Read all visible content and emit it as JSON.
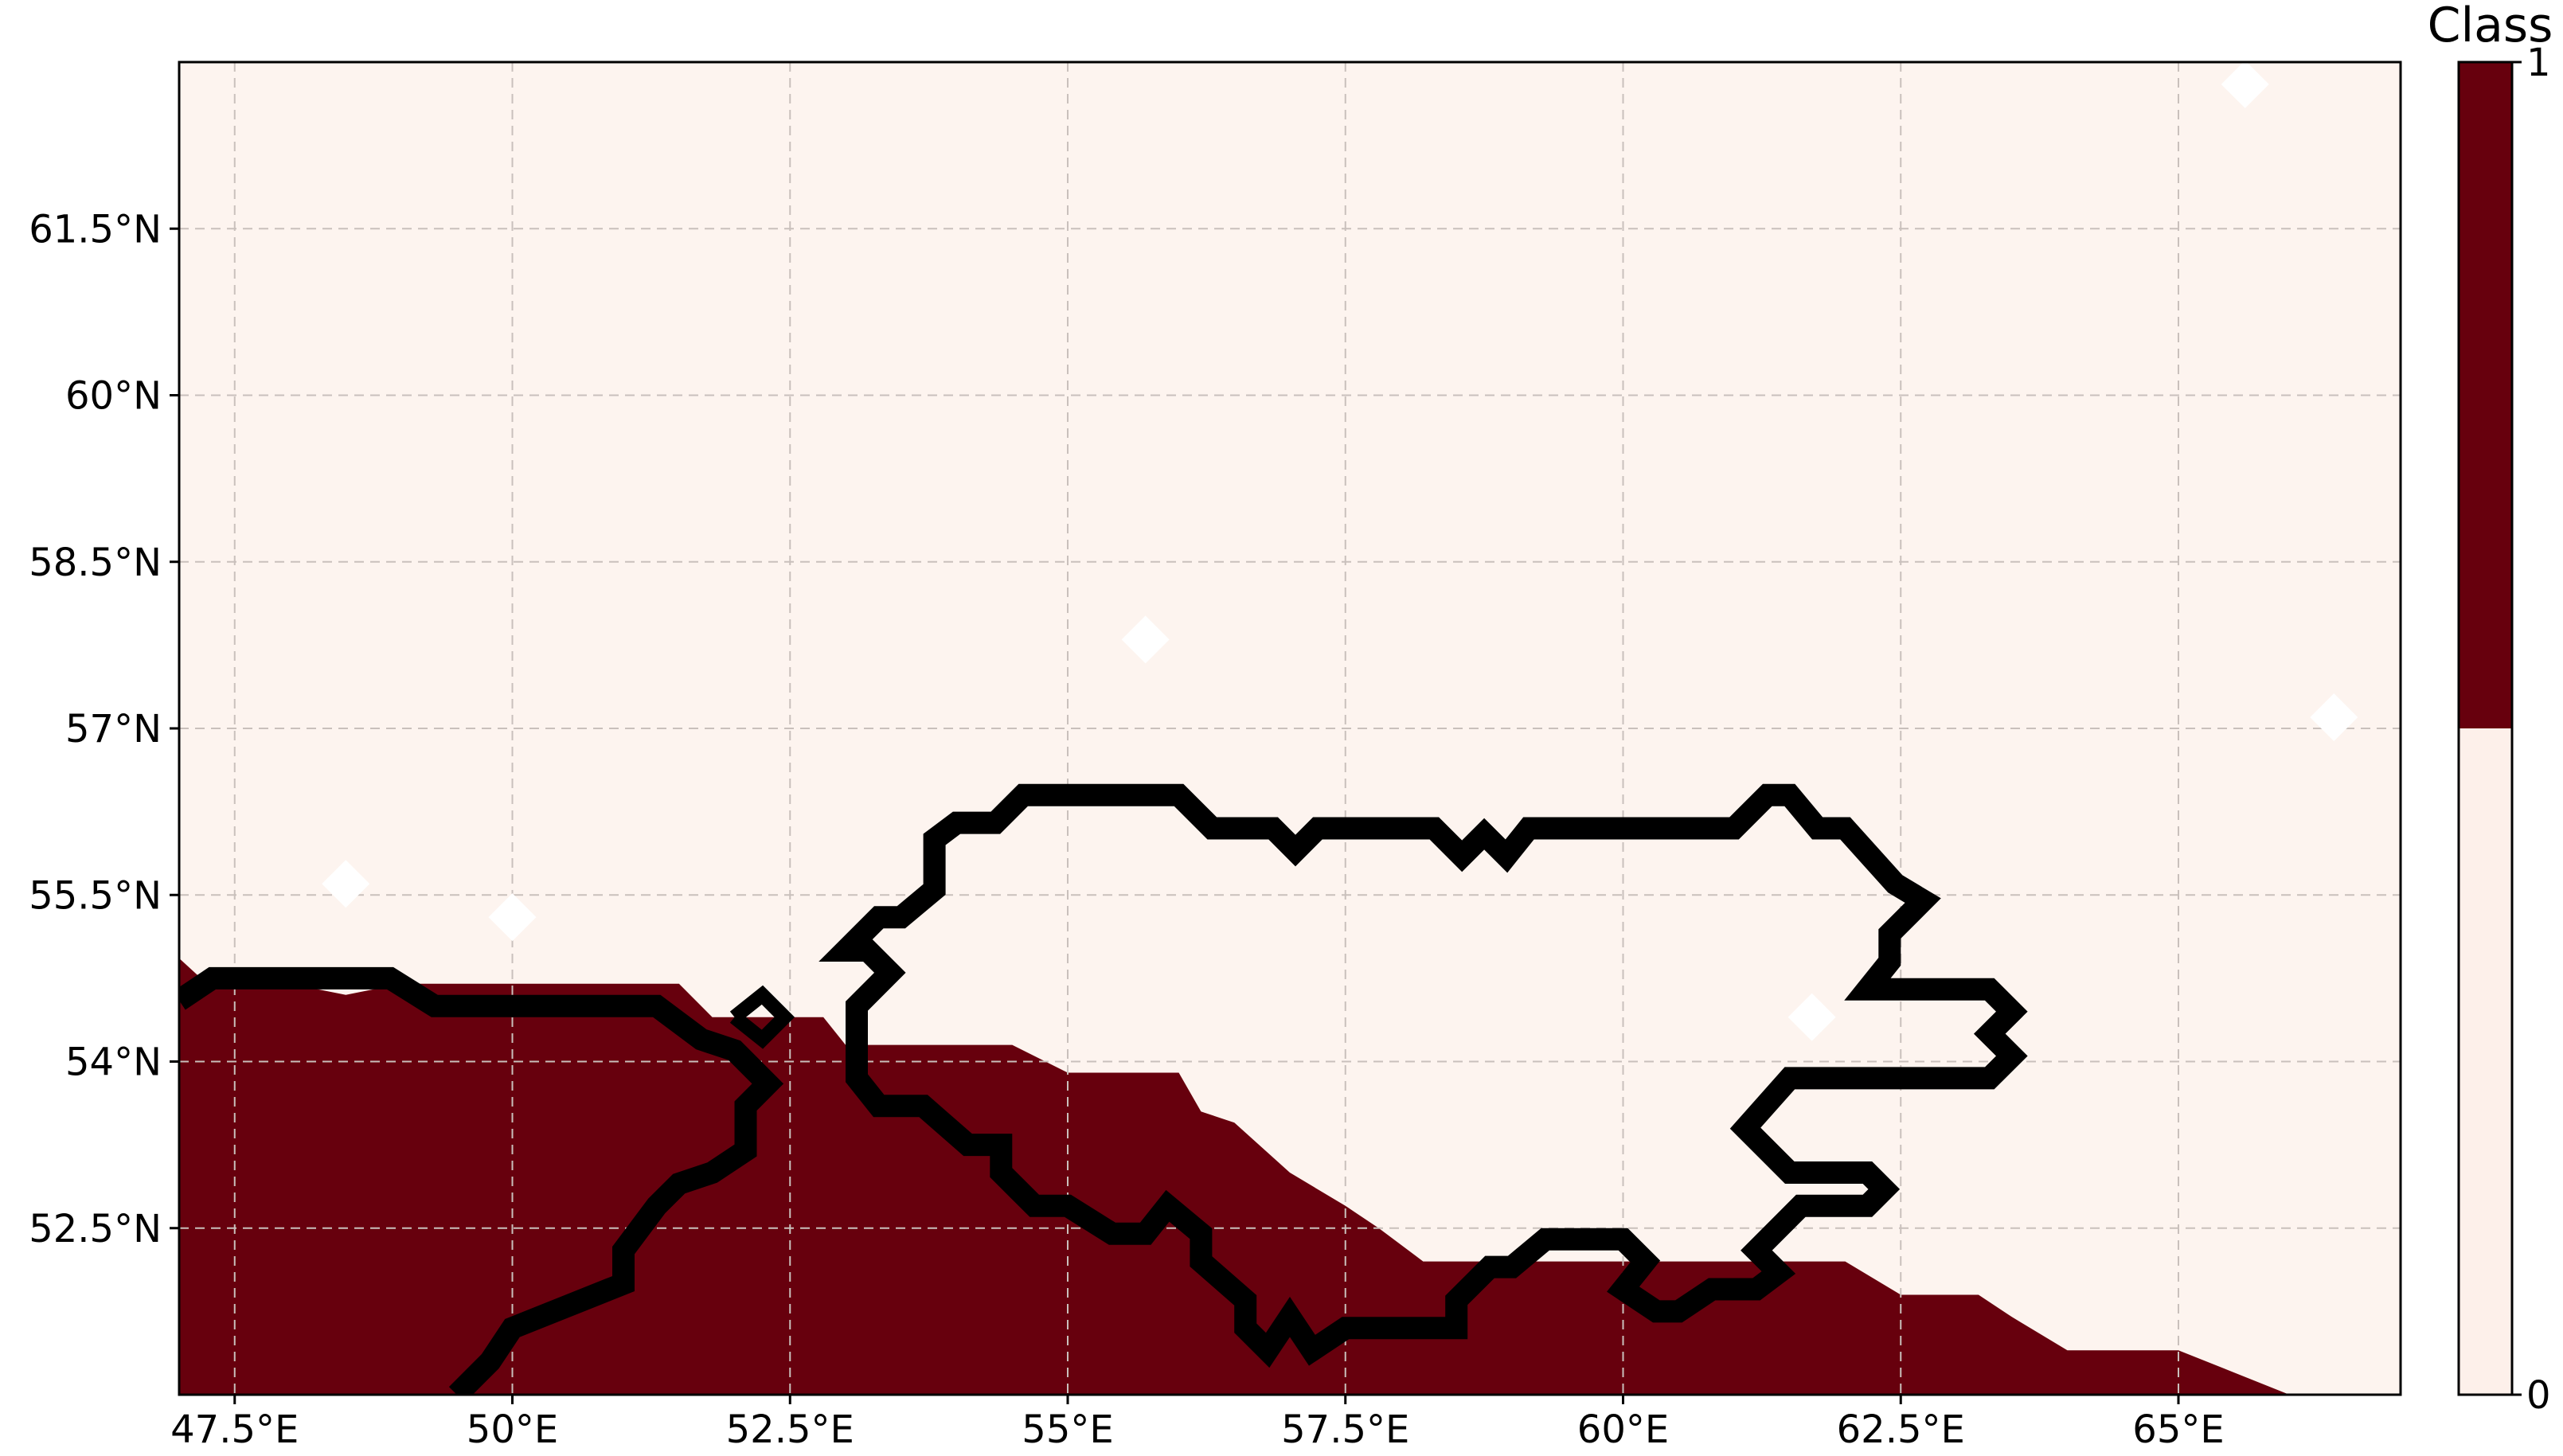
{
  "map": {
    "lon_range": [
      47.0,
      67.0
    ],
    "lat_range": [
      51.0,
      63.0
    ],
    "grid_lines": true,
    "grid_style": "dashed",
    "x_tick_labels": [
      {
        "lon": 47.5,
        "label": "47.5°E"
      },
      {
        "lon": 50.0,
        "label": "50°E"
      },
      {
        "lon": 52.5,
        "label": "52.5°E"
      },
      {
        "lon": 55.0,
        "label": "55°E"
      },
      {
        "lon": 57.5,
        "label": "57.5°E"
      },
      {
        "lon": 60.0,
        "label": "60°E"
      },
      {
        "lon": 62.5,
        "label": "62.5°E"
      },
      {
        "lon": 65.0,
        "label": "65°E"
      }
    ],
    "y_tick_labels": [
      {
        "lat": 52.5,
        "label": "52.5°N"
      },
      {
        "lat": 54.0,
        "label": "54°N"
      },
      {
        "lat": 55.5,
        "label": "55.5°N"
      },
      {
        "lat": 57.0,
        "label": "57°N"
      },
      {
        "lat": 58.5,
        "label": "58.5°N"
      },
      {
        "lat": 60.0,
        "label": "60°N"
      },
      {
        "lat": 61.5,
        "label": "61.5°N"
      }
    ],
    "class_1_region": [
      [
        47.0,
        54.93
      ],
      [
        47.25,
        54.7
      ],
      [
        48.0,
        54.7
      ],
      [
        48.5,
        54.6
      ],
      [
        49.0,
        54.7
      ],
      [
        50.5,
        54.7
      ],
      [
        51.5,
        54.7
      ],
      [
        51.8,
        54.4
      ],
      [
        52.8,
        54.4
      ],
      [
        53.0,
        54.15
      ],
      [
        54.5,
        54.15
      ],
      [
        55.0,
        53.9
      ],
      [
        56.0,
        53.9
      ],
      [
        56.2,
        53.55
      ],
      [
        56.5,
        53.45
      ],
      [
        57.0,
        53.0
      ],
      [
        57.5,
        52.7
      ],
      [
        57.8,
        52.5
      ],
      [
        58.2,
        52.2
      ],
      [
        60.0,
        52.2
      ],
      [
        61.0,
        52.2
      ],
      [
        62.0,
        52.2
      ],
      [
        62.5,
        51.9
      ],
      [
        63.2,
        51.9
      ],
      [
        63.5,
        51.7
      ],
      [
        64.0,
        51.4
      ],
      [
        65.0,
        51.4
      ],
      [
        65.5,
        51.2
      ],
      [
        66.0,
        51.0
      ],
      [
        47.0,
        51.0
      ]
    ],
    "region_boundary": [
      [
        53.0,
        55.0
      ],
      [
        53.3,
        55.3
      ],
      [
        53.5,
        55.3
      ],
      [
        53.8,
        55.55
      ],
      [
        53.8,
        56.0
      ],
      [
        54.0,
        56.15
      ],
      [
        54.35,
        56.15
      ],
      [
        54.6,
        56.4
      ],
      [
        56.0,
        56.4
      ],
      [
        56.3,
        56.1
      ],
      [
        56.85,
        56.1
      ],
      [
        57.05,
        55.9
      ],
      [
        57.25,
        56.1
      ],
      [
        58.3,
        56.1
      ],
      [
        58.55,
        55.85
      ],
      [
        58.75,
        56.05
      ],
      [
        58.95,
        55.85
      ],
      [
        59.15,
        56.1
      ],
      [
        61.0,
        56.1
      ],
      [
        61.3,
        56.4
      ],
      [
        61.5,
        56.4
      ],
      [
        61.75,
        56.1
      ],
      [
        62.0,
        56.1
      ],
      [
        62.45,
        55.6
      ],
      [
        62.7,
        55.45
      ],
      [
        62.4,
        55.15
      ],
      [
        62.4,
        54.9
      ],
      [
        62.2,
        54.65
      ],
      [
        63.3,
        54.65
      ],
      [
        63.5,
        54.45
      ],
      [
        63.3,
        54.25
      ],
      [
        63.5,
        54.05
      ],
      [
        63.3,
        53.85
      ],
      [
        61.5,
        53.85
      ],
      [
        61.1,
        53.4
      ],
      [
        61.5,
        53.0
      ],
      [
        62.2,
        53.0
      ],
      [
        62.35,
        52.85
      ],
      [
        62.2,
        52.7
      ],
      [
        61.6,
        52.7
      ],
      [
        61.2,
        52.3
      ],
      [
        61.4,
        52.1
      ],
      [
        61.2,
        51.95
      ],
      [
        60.8,
        51.95
      ],
      [
        60.5,
        51.75
      ],
      [
        60.3,
        51.75
      ],
      [
        60.0,
        51.95
      ],
      [
        60.2,
        52.2
      ],
      [
        60.0,
        52.4
      ],
      [
        59.3,
        52.4
      ],
      [
        59.0,
        52.15
      ],
      [
        58.8,
        52.15
      ],
      [
        58.5,
        51.85
      ],
      [
        58.5,
        51.6
      ],
      [
        57.5,
        51.6
      ],
      [
        57.2,
        51.4
      ],
      [
        57.0,
        51.7
      ],
      [
        56.8,
        51.4
      ],
      [
        56.6,
        51.6
      ],
      [
        56.6,
        51.85
      ],
      [
        56.2,
        52.2
      ],
      [
        56.2,
        52.45
      ],
      [
        55.9,
        52.7
      ],
      [
        55.7,
        52.45
      ],
      [
        55.4,
        52.45
      ],
      [
        55.0,
        52.7
      ],
      [
        54.7,
        52.7
      ],
      [
        54.4,
        53.0
      ],
      [
        54.4,
        53.25
      ],
      [
        54.1,
        53.25
      ],
      [
        53.7,
        53.6
      ],
      [
        53.3,
        53.6
      ],
      [
        53.1,
        53.85
      ],
      [
        53.1,
        54.5
      ],
      [
        53.4,
        54.8
      ],
      [
        53.2,
        55.0
      ],
      [
        53.0,
        55.0
      ]
    ],
    "secondary_boundary": [
      [
        47.0,
        54.55
      ],
      [
        47.3,
        54.75
      ],
      [
        48.9,
        54.75
      ],
      [
        49.3,
        54.5
      ],
      [
        51.3,
        54.5
      ],
      [
        51.7,
        54.2
      ],
      [
        52.0,
        54.1
      ],
      [
        52.3,
        53.8
      ],
      [
        52.1,
        53.6
      ],
      [
        52.1,
        53.2
      ],
      [
        51.8,
        53.0
      ],
      [
        51.5,
        52.9
      ],
      [
        51.3,
        52.7
      ],
      [
        51.0,
        52.3
      ],
      [
        51.0,
        52.0
      ],
      [
        50.5,
        51.8
      ],
      [
        50.0,
        51.6
      ],
      [
        49.8,
        51.3
      ],
      [
        49.5,
        51.0
      ]
    ],
    "secondary_loop": [
      [
        52.0,
        54.4
      ],
      [
        52.25,
        54.6
      ],
      [
        52.45,
        54.4
      ],
      [
        52.25,
        54.2
      ],
      [
        52.0,
        54.4
      ]
    ],
    "white_diamonds": [
      {
        "lon": 48.5,
        "lat": 55.6
      },
      {
        "lon": 50.0,
        "lat": 55.3
      },
      {
        "lon": 55.7,
        "lat": 57.8
      },
      {
        "lon": 61.7,
        "lat": 54.4
      },
      {
        "lon": 65.6,
        "lat": 62.8
      },
      {
        "lon": 66.4,
        "lat": 57.1
      }
    ]
  },
  "colorbar": {
    "title": "Class",
    "max_label": "1",
    "min_label": "0",
    "colors": {
      "class_1": "#67000d",
      "class_0": "#fdf0ea"
    }
  },
  "colors": {
    "background": "#fdf4ef",
    "class_1": "#67000d",
    "boundary": "#000000",
    "grid": "#c9c0bc",
    "nodata": "#ffffff"
  }
}
